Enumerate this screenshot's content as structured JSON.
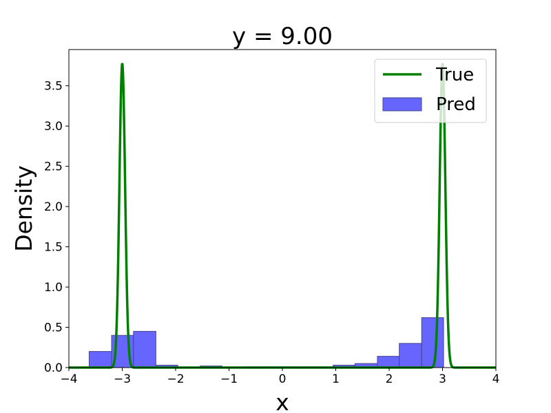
{
  "chart_data": {
    "type": "bar",
    "title": "y = 9.00",
    "xlabel": "x",
    "ylabel": "Density",
    "xlim": [
      -4,
      4
    ],
    "ylim": [
      0,
      3.95
    ],
    "xticks": [
      "−4",
      "−3",
      "−2",
      "−1",
      "0",
      "1",
      "2",
      "3",
      "4"
    ],
    "xtick_values": [
      -4,
      -3,
      -2,
      -1,
      0,
      1,
      2,
      3,
      4
    ],
    "yticks": [
      "0.0",
      "0.5",
      "1.0",
      "1.5",
      "2.0",
      "2.5",
      "3.0",
      "3.5"
    ],
    "ytick_values": [
      0,
      0.5,
      1.0,
      1.5,
      2.0,
      2.5,
      3.0,
      3.5
    ],
    "grid": false,
    "legend_position": "top-right",
    "series": [
      {
        "name": "True",
        "kind": "line",
        "color": "#008000",
        "components": [
          {
            "mean": -3,
            "peak": 3.78,
            "std": 0.053
          },
          {
            "mean": 3,
            "peak": 3.78,
            "std": 0.053
          }
        ]
      },
      {
        "name": "Pred",
        "kind": "histogram",
        "color": "#6666ff",
        "edge_color": "#444488",
        "bins": [
          {
            "x0": -3.62,
            "x1": -3.2,
            "value": 0.2
          },
          {
            "x0": -3.2,
            "x1": -2.79,
            "value": 0.4
          },
          {
            "x0": -2.79,
            "x1": -2.37,
            "value": 0.45
          },
          {
            "x0": -2.37,
            "x1": -1.96,
            "value": 0.03
          },
          {
            "x0": -1.96,
            "x1": -1.54,
            "value": 0.0
          },
          {
            "x0": -1.54,
            "x1": -1.13,
            "value": 0.02
          },
          {
            "x0": -1.13,
            "x1": -0.71,
            "value": 0.0
          },
          {
            "x0": -0.71,
            "x1": -0.3,
            "value": 0.01
          },
          {
            "x0": -0.3,
            "x1": 0.12,
            "value": 0.01
          },
          {
            "x0": 0.12,
            "x1": 0.53,
            "value": 0.01
          },
          {
            "x0": 0.53,
            "x1": 0.95,
            "value": 0.01
          },
          {
            "x0": 0.95,
            "x1": 1.36,
            "value": 0.03
          },
          {
            "x0": 1.36,
            "x1": 1.78,
            "value": 0.05
          },
          {
            "x0": 1.78,
            "x1": 2.19,
            "value": 0.14
          },
          {
            "x0": 2.19,
            "x1": 2.61,
            "value": 0.3
          },
          {
            "x0": 2.61,
            "x1": 3.02,
            "value": 0.62
          }
        ]
      }
    ]
  }
}
